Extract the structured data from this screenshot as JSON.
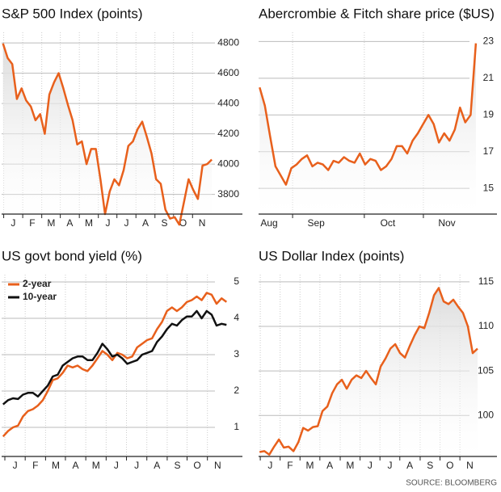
{
  "chart_data": [
    {
      "type": "line",
      "title": "S&P 500 Index (points)",
      "color": "#e8601c",
      "area": true,
      "grid": true,
      "values": [
        4796,
        4700,
        4660,
        4430,
        4500,
        4420,
        4380,
        4290,
        4330,
        4200,
        4460,
        4540,
        4600,
        4500,
        4390,
        4290,
        4130,
        4150,
        4000,
        4100,
        4100,
        3900,
        3670,
        3820,
        3900,
        3860,
        3960,
        4120,
        4150,
        4230,
        4280,
        4180,
        4070,
        3900,
        3870,
        3700,
        3640,
        3650,
        3600,
        3750,
        3900,
        3830,
        3770,
        3990,
        4000,
        4030
      ],
      "ylim": [
        3670,
        4870
      ],
      "yticks": [
        3800,
        4000,
        4200,
        4400,
        4600,
        4800
      ],
      "xlim": [
        -0.3,
        51.6
      ],
      "xticks": [
        {
          "value": 2.2,
          "label": "J"
        },
        {
          "value": 6.3,
          "label": "F"
        },
        {
          "value": 10.4,
          "label": "M"
        },
        {
          "value": 14.4,
          "label": "A"
        },
        {
          "value": 18.5,
          "label": "M"
        },
        {
          "value": 22.6,
          "label": "J"
        },
        {
          "value": 26.6,
          "label": "J"
        },
        {
          "value": 30.7,
          "label": "A"
        },
        {
          "value": 34.8,
          "label": "S"
        },
        {
          "value": 38.8,
          "label": "O"
        },
        {
          "value": 42.9,
          "label": "N"
        }
      ]
    },
    {
      "type": "line",
      "title": "Abercrombie & Fitch share price ($US)",
      "color": "#e8601c",
      "area": true,
      "grid": true,
      "values": [
        20.5,
        19.5,
        17.8,
        16.2,
        15.7,
        15.2,
        16.1,
        16.3,
        16.6,
        16.8,
        16.2,
        16.4,
        16.3,
        16.0,
        16.5,
        16.4,
        16.7,
        16.5,
        16.4,
        16.9,
        16.3,
        16.6,
        16.5,
        16.0,
        16.2,
        16.6,
        17.3,
        17.3,
        16.9,
        17.6,
        18.0,
        18.5,
        19.0,
        18.5,
        17.5,
        18.0,
        17.6,
        18.2,
        19.4,
        18.6,
        19.0,
        22.9
      ],
      "ylim": [
        13.6,
        23.5
      ],
      "yticks": [
        15,
        17,
        19,
        21,
        23
      ],
      "xlim": [
        -0.2,
        45
      ],
      "xticks": [
        {
          "value": 1.8,
          "label": "Aug"
        },
        {
          "value": 10.7,
          "label": "Sep"
        },
        {
          "value": 24.3,
          "label": "Oct"
        },
        {
          "value": 35.5,
          "label": "Nov"
        }
      ]
    },
    {
      "type": "line",
      "title": "US govt bond yield (%)",
      "grid": true,
      "legend": "upper left",
      "series": [
        {
          "name": "2-year",
          "color": "#e8601c",
          "values": [
            0.75,
            0.9,
            1.0,
            1.05,
            1.3,
            1.45,
            1.5,
            1.6,
            1.75,
            2.0,
            2.3,
            2.35,
            2.5,
            2.7,
            2.65,
            2.7,
            2.6,
            2.55,
            2.7,
            2.9,
            3.1,
            3.0,
            2.85,
            3.05,
            3.0,
            2.9,
            2.95,
            3.2,
            3.3,
            3.4,
            3.45,
            3.7,
            3.9,
            4.2,
            4.3,
            4.2,
            4.3,
            4.45,
            4.5,
            4.6,
            4.5,
            4.7,
            4.65,
            4.4,
            4.55,
            4.45
          ]
        },
        {
          "name": "10-year",
          "color": "#111111",
          "values": [
            1.63,
            1.75,
            1.8,
            1.78,
            1.9,
            1.95,
            1.95,
            1.85,
            2.0,
            2.15,
            2.4,
            2.45,
            2.7,
            2.8,
            2.9,
            2.95,
            2.95,
            2.85,
            2.85,
            3.05,
            3.3,
            3.15,
            2.95,
            3.0,
            2.9,
            2.75,
            2.8,
            2.85,
            3.0,
            3.05,
            3.1,
            3.35,
            3.5,
            3.7,
            3.85,
            3.8,
            3.95,
            4.05,
            4.05,
            4.2,
            4.0,
            4.2,
            4.1,
            3.8,
            3.85,
            3.82
          ]
        }
      ],
      "ylim": [
        0.2,
        5.2
      ],
      "yticks": [
        1,
        2,
        3,
        4,
        5
      ],
      "xlim": [
        -0.3,
        48.2
      ],
      "xticks": [
        {
          "value": 2.4,
          "label": "J"
        },
        {
          "value": 6.5,
          "label": "F"
        },
        {
          "value": 10.6,
          "label": "M"
        },
        {
          "value": 14.6,
          "label": "A"
        },
        {
          "value": 18.7,
          "label": "M"
        },
        {
          "value": 22.8,
          "label": "J"
        },
        {
          "value": 26.9,
          "label": "J"
        },
        {
          "value": 31.0,
          "label": "A"
        },
        {
          "value": 35.1,
          "label": "S"
        },
        {
          "value": 39.1,
          "label": "O"
        },
        {
          "value": 43.2,
          "label": "N"
        }
      ]
    },
    {
      "type": "line",
      "title": "US Dollar Index (points)",
      "color": "#e8601c",
      "area": true,
      "grid": true,
      "values": [
        95.9,
        96.0,
        95.6,
        96.5,
        97.3,
        96.4,
        96.5,
        96.0,
        97.0,
        98.6,
        98.3,
        98.7,
        98.8,
        100.5,
        101.0,
        102.5,
        103.5,
        104.0,
        103.0,
        104.0,
        104.5,
        104.2,
        105.0,
        104.2,
        103.5,
        105.5,
        106.4,
        107.5,
        108.0,
        107.0,
        106.5,
        107.8,
        109.0,
        110.0,
        109.8,
        111.5,
        113.5,
        114.3,
        112.8,
        112.5,
        113.0,
        112.2,
        111.5,
        110.0,
        107.0,
        107.5
      ],
      "ylim": [
        95.4,
        115.8
      ],
      "yticks": [
        100,
        105,
        110,
        115
      ],
      "xlim": [
        -0.2,
        49
      ],
      "xticks": [
        {
          "value": 2.2,
          "label": "J"
        },
        {
          "value": 6.3,
          "label": "F"
        },
        {
          "value": 10.4,
          "label": "M"
        },
        {
          "value": 14.5,
          "label": "A"
        },
        {
          "value": 18.7,
          "label": "M"
        },
        {
          "value": 22.8,
          "label": "J"
        },
        {
          "value": 26.9,
          "label": "J"
        },
        {
          "value": 31.0,
          "label": "A"
        },
        {
          "value": 35.2,
          "label": "S"
        },
        {
          "value": 39.3,
          "label": "O"
        },
        {
          "value": 43.4,
          "label": "N"
        }
      ]
    }
  ],
  "source": "SOURCE: BLOOMBERG"
}
